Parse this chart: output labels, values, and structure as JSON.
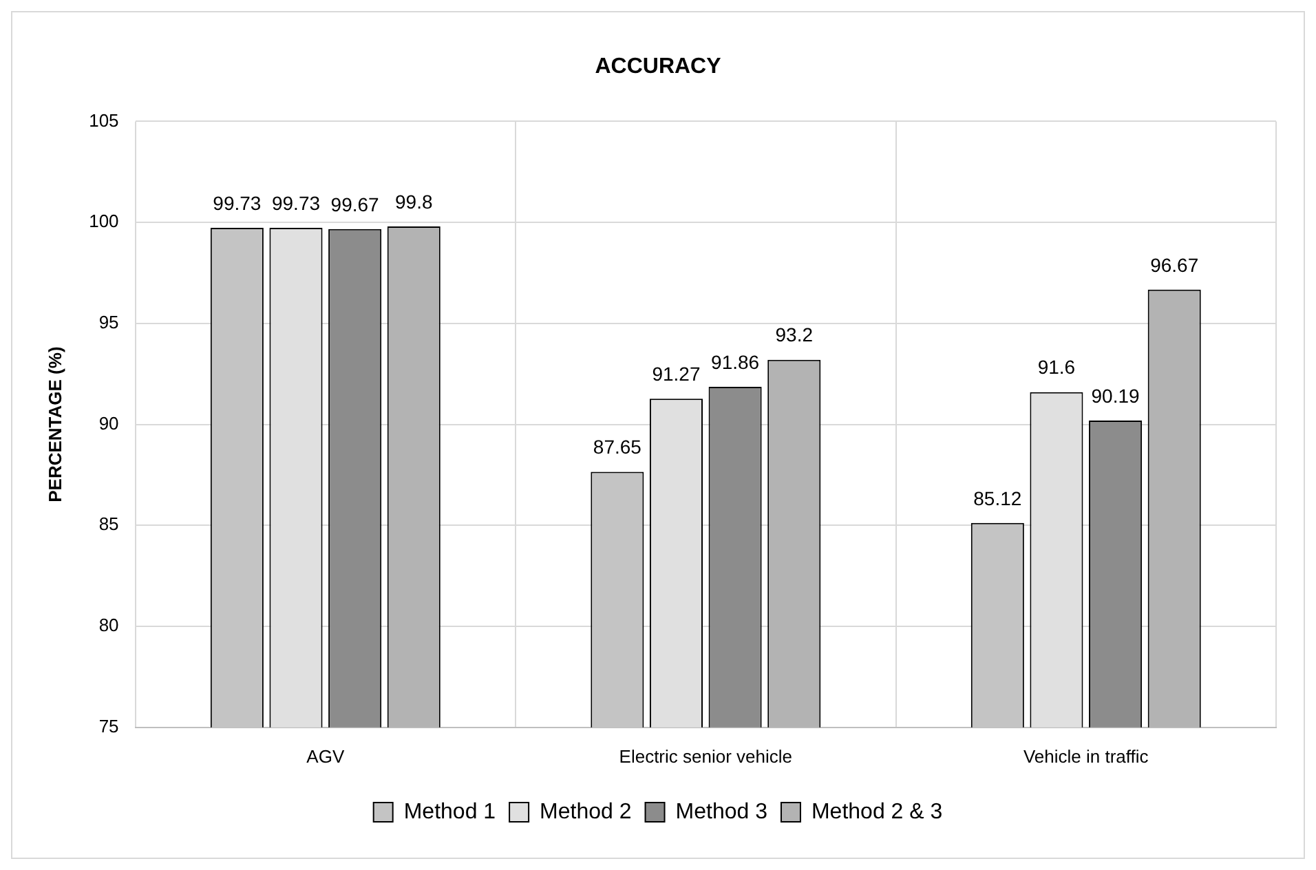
{
  "chart_data": {
    "type": "bar",
    "title": "ACCURACY",
    "ylabel": "PERCENTAGE (%)",
    "categories": [
      "AGV",
      "Electric senior vehicle",
      "Vehicle in traffic"
    ],
    "series": [
      {
        "name": "Method 1",
        "color": "#c4c4c4",
        "values": [
          99.73,
          87.65,
          85.12
        ]
      },
      {
        "name": "Method 2",
        "color": "#e0e0e0",
        "values": [
          99.73,
          91.27,
          91.6
        ]
      },
      {
        "name": "Method 3",
        "color": "#8c8c8c",
        "values": [
          99.67,
          91.86,
          90.19
        ]
      },
      {
        "name": "Method 2 & 3",
        "color": "#b3b3b3",
        "values": [
          99.8,
          93.2,
          96.67
        ]
      }
    ],
    "ylim": [
      75,
      105
    ],
    "yticks": [
      75,
      80,
      85,
      90,
      95,
      100,
      105
    ],
    "grid": true,
    "legend": "bottom",
    "data_labels": true
  }
}
